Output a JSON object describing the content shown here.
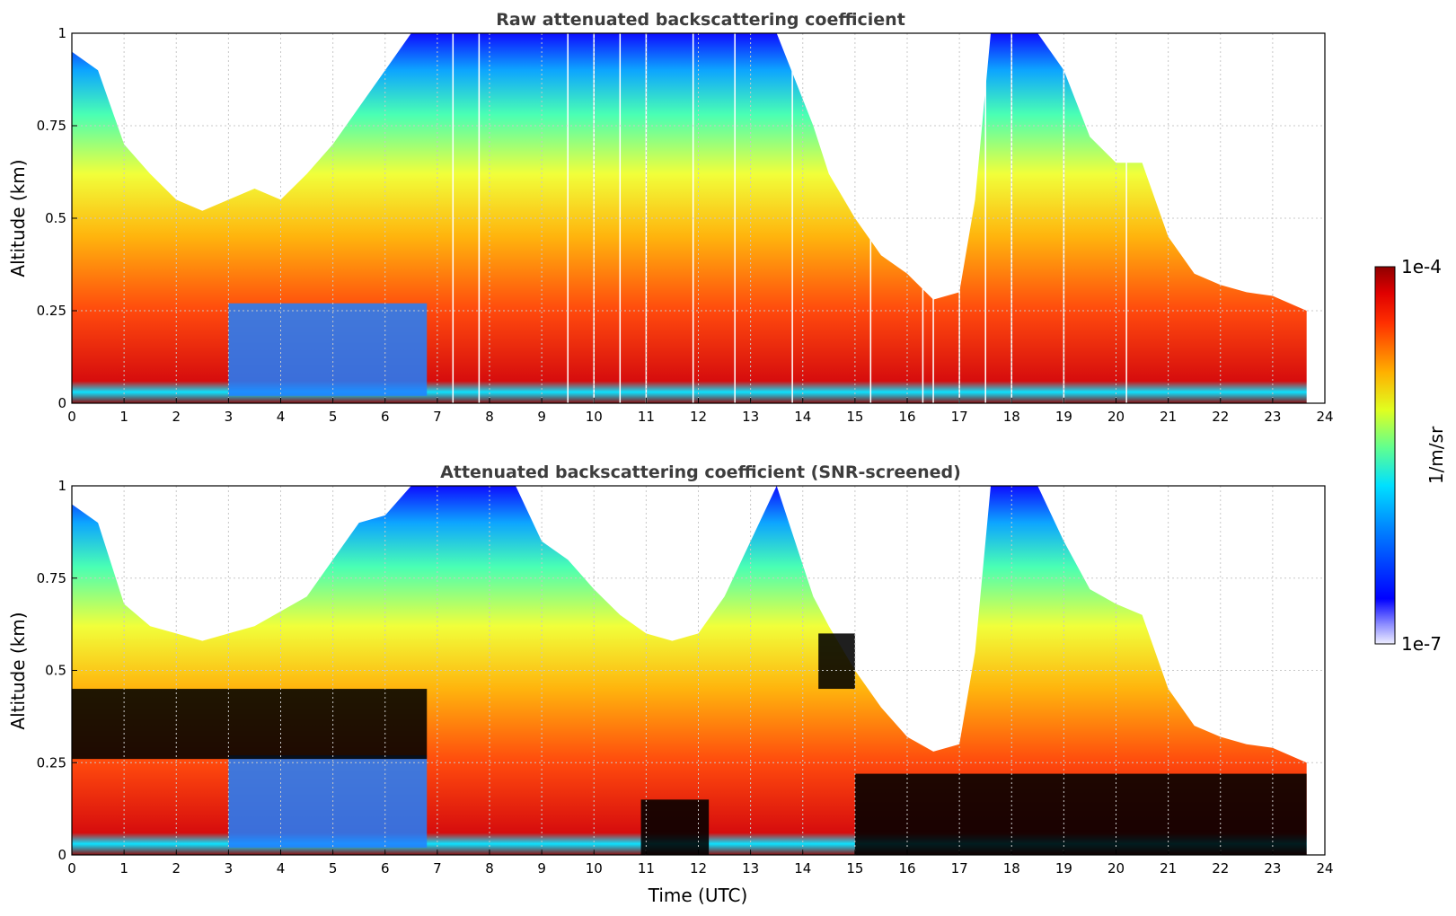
{
  "chart_data": [
    {
      "type": "heatmap",
      "title": "Raw attenuated backscattering coefficient",
      "xlabel": "",
      "ylabel": "Altitude (km)",
      "xlim": [
        0,
        24
      ],
      "ylim": [
        0,
        1
      ],
      "x_ticks": [
        "0",
        "1",
        "2",
        "3",
        "4",
        "5",
        "6",
        "7",
        "8",
        "9",
        "10",
        "11",
        "12",
        "13",
        "14",
        "15",
        "16",
        "17",
        "18",
        "19",
        "20",
        "21",
        "22",
        "23",
        "24"
      ],
      "y_ticks": [
        "0",
        "0.25",
        "0.5",
        "0.75",
        "1"
      ],
      "grid": true,
      "data_end_hour": 23.65,
      "top_profile_km": [
        [
          0,
          0.95
        ],
        [
          0.5,
          0.9
        ],
        [
          1,
          0.7
        ],
        [
          1.5,
          0.62
        ],
        [
          2,
          0.55
        ],
        [
          2.5,
          0.52
        ],
        [
          3,
          0.55
        ],
        [
          3.5,
          0.58
        ],
        [
          4,
          0.55
        ],
        [
          4.5,
          0.62
        ],
        [
          5,
          0.7
        ],
        [
          5.5,
          0.8
        ],
        [
          6,
          0.9
        ],
        [
          6.5,
          1
        ],
        [
          9,
          1
        ],
        [
          10,
          1
        ],
        [
          12,
          1
        ],
        [
          13.5,
          1
        ],
        [
          14.2,
          0.75
        ],
        [
          14.5,
          0.62
        ],
        [
          15,
          0.5
        ],
        [
          15.5,
          0.4
        ],
        [
          16,
          0.35
        ],
        [
          16.5,
          0.28
        ],
        [
          17,
          0.3
        ],
        [
          17.3,
          0.55
        ],
        [
          17.6,
          1
        ],
        [
          18.5,
          1
        ],
        [
          19,
          0.9
        ],
        [
          19.5,
          0.72
        ],
        [
          20,
          0.65
        ],
        [
          20.5,
          0.65
        ],
        [
          21,
          0.45
        ],
        [
          21.5,
          0.35
        ],
        [
          22,
          0.32
        ],
        [
          22.5,
          0.3
        ],
        [
          23,
          0.29
        ],
        [
          23.65,
          0.25
        ]
      ],
      "data_gaps_hour": [
        7.3,
        7.8,
        9.5,
        10.0,
        10.5,
        11.0,
        11.9,
        12.7,
        13.8,
        15.3,
        16.3,
        16.5,
        17.0,
        17.5,
        18.0,
        19.0,
        20.2
      ]
    },
    {
      "type": "heatmap",
      "title": "Attenuated backscattering coefficient (SNR-screened)",
      "xlabel": "Time (UTC)",
      "ylabel": "Altitude (km)",
      "xlim": [
        0,
        24
      ],
      "ylim": [
        0,
        1
      ],
      "x_ticks": [
        "0",
        "1",
        "2",
        "3",
        "4",
        "5",
        "6",
        "7",
        "8",
        "9",
        "10",
        "11",
        "12",
        "13",
        "14",
        "15",
        "16",
        "17",
        "18",
        "19",
        "20",
        "21",
        "22",
        "23",
        "24"
      ],
      "y_ticks": [
        "0",
        "0.25",
        "0.5",
        "0.75",
        "1"
      ],
      "grid": true,
      "data_end_hour": 23.65,
      "top_profile_km": [
        [
          0,
          0.95
        ],
        [
          0.5,
          0.9
        ],
        [
          1,
          0.68
        ],
        [
          1.5,
          0.62
        ],
        [
          2,
          0.6
        ],
        [
          2.5,
          0.58
        ],
        [
          3,
          0.6
        ],
        [
          3.5,
          0.62
        ],
        [
          4,
          0.66
        ],
        [
          4.5,
          0.7
        ],
        [
          5,
          0.8
        ],
        [
          5.5,
          0.9
        ],
        [
          6,
          0.92
        ],
        [
          6.5,
          1
        ],
        [
          8.5,
          1
        ],
        [
          9,
          0.85
        ],
        [
          9.5,
          0.8
        ],
        [
          10,
          0.72
        ],
        [
          10.5,
          0.65
        ],
        [
          11,
          0.6
        ],
        [
          11.5,
          0.58
        ],
        [
          12,
          0.6
        ],
        [
          12.5,
          0.7
        ],
        [
          13,
          0.85
        ],
        [
          13.5,
          1
        ],
        [
          14.2,
          0.7
        ],
        [
          14.5,
          0.62
        ],
        [
          15,
          0.5
        ],
        [
          15.5,
          0.4
        ],
        [
          16,
          0.32
        ],
        [
          16.5,
          0.28
        ],
        [
          17,
          0.3
        ],
        [
          17.3,
          0.55
        ],
        [
          17.6,
          1
        ],
        [
          18.5,
          1
        ],
        [
          19,
          0.85
        ],
        [
          19.5,
          0.72
        ],
        [
          20,
          0.68
        ],
        [
          20.5,
          0.65
        ],
        [
          21,
          0.45
        ],
        [
          21.5,
          0.35
        ],
        [
          22,
          0.32
        ],
        [
          22.5,
          0.3
        ],
        [
          23,
          0.29
        ],
        [
          23.65,
          0.25
        ]
      ],
      "screened_black_regions": [
        {
          "hours": [
            0,
            6.8
          ],
          "alt_km": [
            0.26,
            0.45
          ]
        },
        {
          "hours": [
            10.9,
            12.2
          ],
          "alt_km": [
            0,
            0.15
          ]
        },
        {
          "hours": [
            14.3,
            15.0
          ],
          "alt_km": [
            0.45,
            0.6
          ]
        },
        {
          "hours": [
            15.0,
            23.65
          ],
          "alt_km": [
            0,
            0.22
          ]
        }
      ]
    }
  ],
  "colorbar": {
    "label": "1/m/sr",
    "max_label": "1e-4",
    "min_label": "1e-7",
    "min_value": 1e-07,
    "max_value": 0.0001,
    "scale": "log",
    "colormap": "jet"
  }
}
